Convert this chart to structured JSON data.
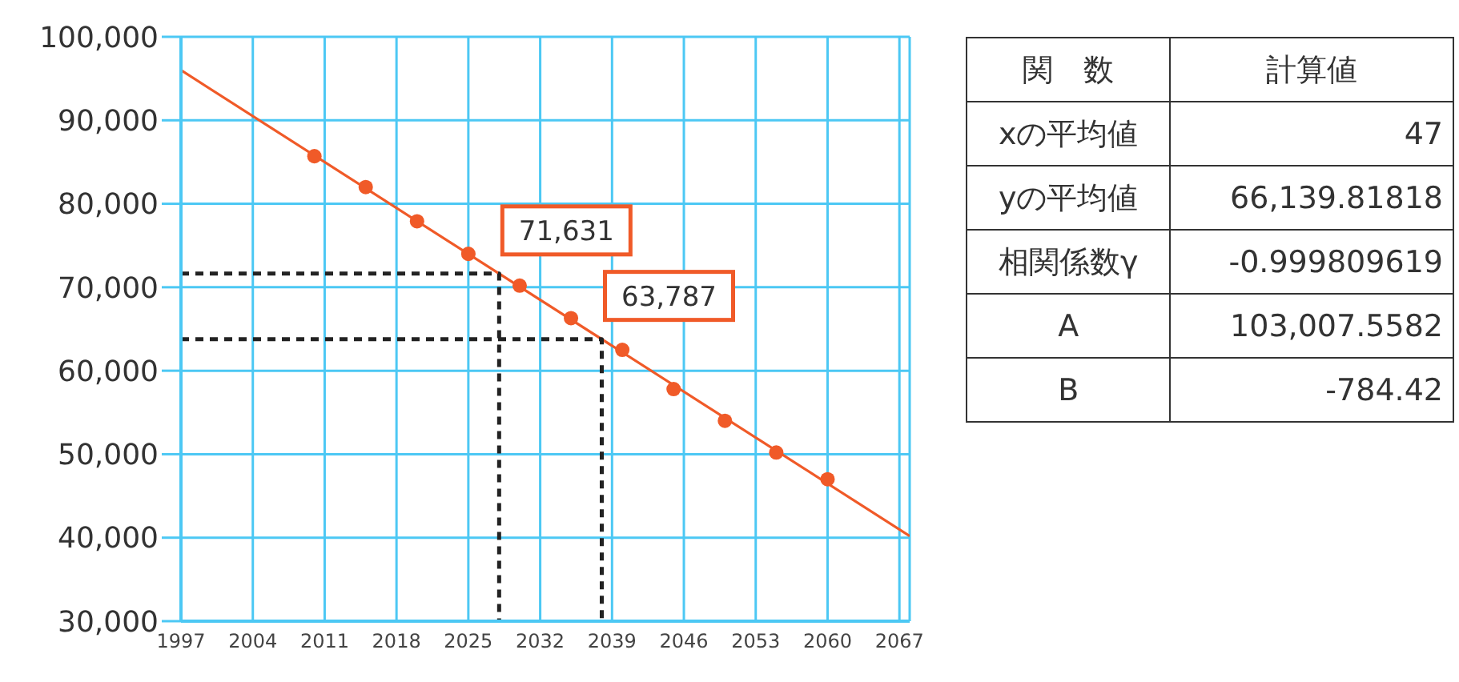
{
  "chart_data": [
    {
      "type": "scatter",
      "xlim": [
        1997,
        2068
      ],
      "xticks": [
        1997,
        2004,
        2011,
        2018,
        2025,
        2032,
        2039,
        2046,
        2053,
        2060,
        2067
      ],
      "ylim": [
        30000,
        100000
      ],
      "yticks": [
        {
          "value": 30000,
          "label": "30,000"
        },
        {
          "value": 40000,
          "label": "40,000"
        },
        {
          "value": 50000,
          "label": "50,000"
        },
        {
          "value": 60000,
          "label": "60,000"
        },
        {
          "value": 70000,
          "label": "70,000"
        },
        {
          "value": 80000,
          "label": "80,000"
        },
        {
          "value": 90000,
          "label": "90,000"
        },
        {
          "value": 100000,
          "label": "100,000"
        }
      ],
      "grid": true,
      "series": [
        {
          "type": "line",
          "color": "#f05a28",
          "marker": "none",
          "x": [
            1997,
            2068
          ],
          "values": [
            96000,
            40200
          ]
        },
        {
          "type": "scatter",
          "color": "#f05a28",
          "marker": "circle",
          "x": [
            2010,
            2015,
            2020,
            2025,
            2030,
            2035,
            2040,
            2045,
            2050,
            2055,
            2060
          ],
          "values": [
            85700,
            82000,
            77900,
            74000,
            70200,
            66300,
            62500,
            57800,
            54000,
            50200,
            47000
          ]
        },
        {
          "type": "line",
          "color": "#222222",
          "marker": "none",
          "line_style": "dashed",
          "x": [
            1997,
            2028,
            2028
          ],
          "values": [
            71631,
            71631,
            30000
          ]
        },
        {
          "type": "line",
          "color": "#222222",
          "marker": "none",
          "line_style": "dashed",
          "x": [
            1997,
            2038,
            2038
          ],
          "values": [
            63787,
            63787,
            30000
          ]
        }
      ],
      "annotations": [
        {
          "text": "71,631",
          "x": 2028,
          "y": 71631
        },
        {
          "text": "63,787",
          "x": 2038,
          "y": 63787
        }
      ]
    },
    {
      "type": "other",
      "annotations": [
        "関　数",
        "計算値",
        "xの平均値",
        "47",
        "yの平均値",
        "66,139.81818",
        "相関係数γ",
        "-0.999809619",
        "A",
        "103,007.5582",
        "B",
        "-784.42"
      ]
    }
  ]
}
